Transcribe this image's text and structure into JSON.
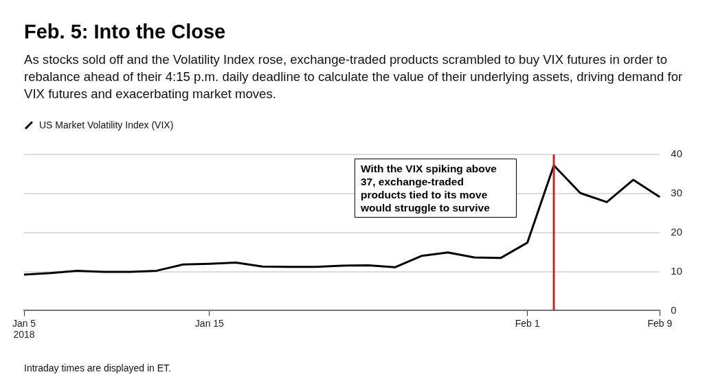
{
  "chart_data": {
    "type": "line",
    "title": "Feb. 5: Into the Close",
    "subtitle": "As stocks sold off and the Volatility Index rose, exchange-traded products scrambled to buy VIX futures in order to rebalance ahead of their 4:15 p.m. daily deadline to calculate the value of their underlying assets, driving demand for VIX futures and exacerbating market moves.",
    "categories": [
      "Jan 5\n2018",
      null,
      null,
      null,
      null,
      null,
      null,
      "Jan 15",
      null,
      null,
      null,
      null,
      null,
      null,
      null,
      null,
      null,
      null,
      null,
      "Feb 1",
      null,
      null,
      null,
      null,
      "Feb 9"
    ],
    "series": [
      {
        "name": "US Market Volatility Index (VIX)",
        "color": "#000000",
        "values": [
          9.2,
          9.6,
          10.2,
          9.9,
          9.9,
          10.2,
          11.8,
          12.0,
          12.3,
          11.3,
          11.2,
          11.2,
          11.5,
          11.6,
          11.1,
          14.0,
          14.9,
          13.6,
          13.5,
          17.4,
          37.2,
          30.1,
          27.8,
          33.5,
          29.1
        ]
      }
    ],
    "ylim": [
      0,
      40
    ],
    "yticks": [
      0,
      10,
      20,
      30,
      40
    ],
    "grid": "y",
    "legend": "top left",
    "marker": "none",
    "line_style": "solid",
    "annotations": [
      "With the VIX spiking above 37, exchange-traded products tied to its move would struggle to survive",
      "Intraday times are displayed in ET."
    ]
  }
}
